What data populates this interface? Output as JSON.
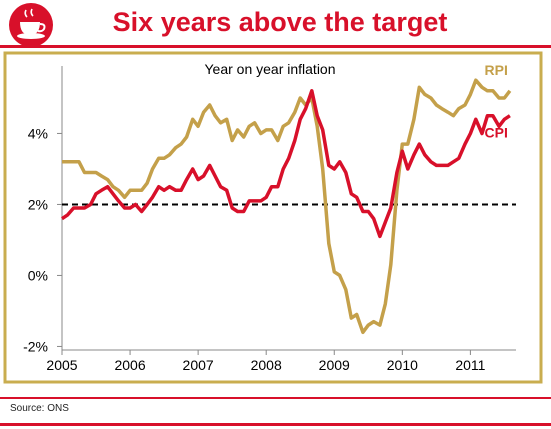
{
  "header": {
    "title": "Six years above the target",
    "logo_icon": "teacup-logo-icon",
    "accent_color": "#d8102a"
  },
  "footer": {
    "source": "Source: ONS"
  },
  "chart_data": {
    "type": "line",
    "title": "Year on year inflation",
    "x_ticks": [
      "2005",
      "2006",
      "2007",
      "2008",
      "2009",
      "2010",
      "2011"
    ],
    "y_ticks": [
      "-2%",
      "0%",
      "2%",
      "4%"
    ],
    "ylim": [
      -2.1,
      5.9
    ],
    "xlim": [
      2005.0,
      2011.67
    ],
    "reference_line": {
      "value": 2,
      "style": "dashed",
      "color": "#000000"
    },
    "frame_color": "#c9ad4f",
    "grid": false,
    "series": [
      {
        "name": "RPI",
        "color": "#c4a04a",
        "points": [
          [
            2005.0,
            3.2
          ],
          [
            2005.08,
            3.2
          ],
          [
            2005.17,
            3.2
          ],
          [
            2005.25,
            3.2
          ],
          [
            2005.33,
            2.9
          ],
          [
            2005.42,
            2.9
          ],
          [
            2005.5,
            2.9
          ],
          [
            2005.58,
            2.8
          ],
          [
            2005.67,
            2.7
          ],
          [
            2005.75,
            2.5
          ],
          [
            2005.83,
            2.4
          ],
          [
            2005.92,
            2.2
          ],
          [
            2006.0,
            2.4
          ],
          [
            2006.08,
            2.4
          ],
          [
            2006.17,
            2.4
          ],
          [
            2006.25,
            2.6
          ],
          [
            2006.33,
            3.0
          ],
          [
            2006.42,
            3.3
          ],
          [
            2006.5,
            3.3
          ],
          [
            2006.58,
            3.4
          ],
          [
            2006.67,
            3.6
          ],
          [
            2006.75,
            3.7
          ],
          [
            2006.83,
            3.9
          ],
          [
            2006.92,
            4.4
          ],
          [
            2007.0,
            4.2
          ],
          [
            2007.08,
            4.6
          ],
          [
            2007.17,
            4.8
          ],
          [
            2007.25,
            4.5
          ],
          [
            2007.33,
            4.3
          ],
          [
            2007.42,
            4.4
          ],
          [
            2007.5,
            3.8
          ],
          [
            2007.58,
            4.1
          ],
          [
            2007.67,
            3.9
          ],
          [
            2007.75,
            4.2
          ],
          [
            2007.83,
            4.3
          ],
          [
            2007.92,
            4.0
          ],
          [
            2008.0,
            4.1
          ],
          [
            2008.08,
            4.1
          ],
          [
            2008.17,
            3.8
          ],
          [
            2008.25,
            4.2
          ],
          [
            2008.33,
            4.3
          ],
          [
            2008.42,
            4.6
          ],
          [
            2008.5,
            5.0
          ],
          [
            2008.58,
            4.8
          ],
          [
            2008.67,
            5.0
          ],
          [
            2008.75,
            4.2
          ],
          [
            2008.83,
            3.0
          ],
          [
            2008.92,
            0.9
          ],
          [
            2009.0,
            0.1
          ],
          [
            2009.08,
            0.0
          ],
          [
            2009.17,
            -0.4
          ],
          [
            2009.25,
            -1.2
          ],
          [
            2009.33,
            -1.1
          ],
          [
            2009.42,
            -1.6
          ],
          [
            2009.5,
            -1.4
          ],
          [
            2009.58,
            -1.3
          ],
          [
            2009.67,
            -1.4
          ],
          [
            2009.75,
            -0.8
          ],
          [
            2009.83,
            0.3
          ],
          [
            2009.92,
            2.4
          ],
          [
            2010.0,
            3.7
          ],
          [
            2010.08,
            3.7
          ],
          [
            2010.17,
            4.4
          ],
          [
            2010.25,
            5.3
          ],
          [
            2010.33,
            5.1
          ],
          [
            2010.42,
            5.0
          ],
          [
            2010.5,
            4.8
          ],
          [
            2010.58,
            4.7
          ],
          [
            2010.67,
            4.6
          ],
          [
            2010.75,
            4.5
          ],
          [
            2010.83,
            4.7
          ],
          [
            2010.92,
            4.8
          ],
          [
            2011.0,
            5.1
          ],
          [
            2011.08,
            5.5
          ],
          [
            2011.17,
            5.3
          ],
          [
            2011.25,
            5.2
          ],
          [
            2011.33,
            5.2
          ],
          [
            2011.42,
            5.0
          ],
          [
            2011.5,
            5.0
          ],
          [
            2011.58,
            5.2
          ]
        ]
      },
      {
        "name": "CPI",
        "color": "#d8102a",
        "points": [
          [
            2005.0,
            1.6
          ],
          [
            2005.08,
            1.7
          ],
          [
            2005.17,
            1.9
          ],
          [
            2005.25,
            1.9
          ],
          [
            2005.33,
            1.9
          ],
          [
            2005.42,
            2.0
          ],
          [
            2005.5,
            2.3
          ],
          [
            2005.58,
            2.4
          ],
          [
            2005.67,
            2.5
          ],
          [
            2005.75,
            2.3
          ],
          [
            2005.83,
            2.1
          ],
          [
            2005.92,
            1.9
          ],
          [
            2006.0,
            1.9
          ],
          [
            2006.08,
            2.0
          ],
          [
            2006.17,
            1.8
          ],
          [
            2006.25,
            2.0
          ],
          [
            2006.33,
            2.2
          ],
          [
            2006.42,
            2.5
          ],
          [
            2006.5,
            2.4
          ],
          [
            2006.58,
            2.5
          ],
          [
            2006.67,
            2.4
          ],
          [
            2006.75,
            2.4
          ],
          [
            2006.83,
            2.7
          ],
          [
            2006.92,
            3.0
          ],
          [
            2007.0,
            2.7
          ],
          [
            2007.08,
            2.8
          ],
          [
            2007.17,
            3.1
          ],
          [
            2007.25,
            2.8
          ],
          [
            2007.33,
            2.5
          ],
          [
            2007.42,
            2.4
          ],
          [
            2007.5,
            1.9
          ],
          [
            2007.58,
            1.8
          ],
          [
            2007.67,
            1.8
          ],
          [
            2007.75,
            2.1
          ],
          [
            2007.83,
            2.1
          ],
          [
            2007.92,
            2.1
          ],
          [
            2008.0,
            2.2
          ],
          [
            2008.08,
            2.5
          ],
          [
            2008.17,
            2.5
          ],
          [
            2008.25,
            3.0
          ],
          [
            2008.33,
            3.3
          ],
          [
            2008.42,
            3.8
          ],
          [
            2008.5,
            4.4
          ],
          [
            2008.58,
            4.7
          ],
          [
            2008.67,
            5.2
          ],
          [
            2008.75,
            4.5
          ],
          [
            2008.83,
            4.1
          ],
          [
            2008.92,
            3.1
          ],
          [
            2009.0,
            3.0
          ],
          [
            2009.08,
            3.2
          ],
          [
            2009.17,
            2.9
          ],
          [
            2009.25,
            2.3
          ],
          [
            2009.33,
            2.2
          ],
          [
            2009.42,
            1.8
          ],
          [
            2009.5,
            1.8
          ],
          [
            2009.58,
            1.6
          ],
          [
            2009.67,
            1.1
          ],
          [
            2009.75,
            1.5
          ],
          [
            2009.83,
            1.9
          ],
          [
            2009.92,
            2.9
          ],
          [
            2010.0,
            3.5
          ],
          [
            2010.08,
            3.0
          ],
          [
            2010.17,
            3.4
          ],
          [
            2010.25,
            3.7
          ],
          [
            2010.33,
            3.4
          ],
          [
            2010.42,
            3.2
          ],
          [
            2010.5,
            3.1
          ],
          [
            2010.58,
            3.1
          ],
          [
            2010.67,
            3.1
          ],
          [
            2010.75,
            3.2
          ],
          [
            2010.83,
            3.3
          ],
          [
            2010.92,
            3.7
          ],
          [
            2011.0,
            4.0
          ],
          [
            2011.08,
            4.4
          ],
          [
            2011.17,
            4.0
          ],
          [
            2011.25,
            4.5
          ],
          [
            2011.33,
            4.5
          ],
          [
            2011.42,
            4.2
          ],
          [
            2011.5,
            4.4
          ],
          [
            2011.58,
            4.5
          ]
        ]
      }
    ]
  }
}
